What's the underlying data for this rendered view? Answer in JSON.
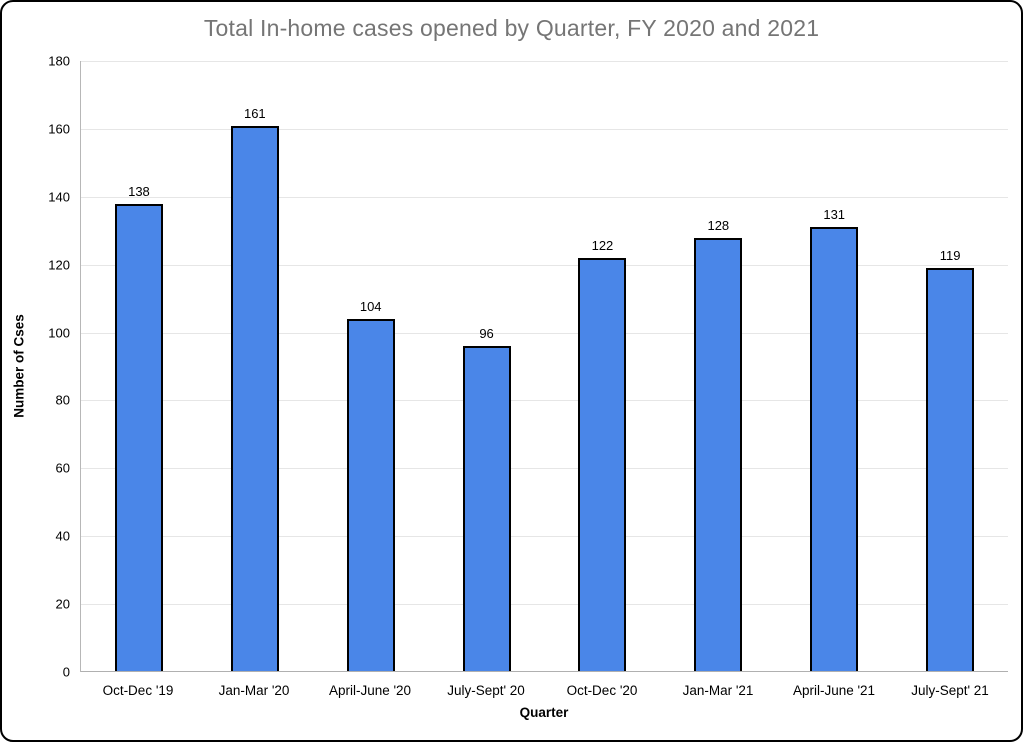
{
  "chart_data": {
    "type": "bar",
    "title": "Total In-home cases opened by Quarter, FY 2020 and 2021",
    "xlabel": "Quarter",
    "ylabel": "Number of Cses",
    "categories": [
      "Oct-Dec '19",
      "Jan-Mar '20",
      "April-June '20",
      "July-Sept' 20",
      "Oct-Dec '20",
      "Jan-Mar '21",
      "April-June '21",
      "July-Sept' 21"
    ],
    "values": [
      138,
      161,
      104,
      96,
      122,
      128,
      131,
      119
    ],
    "ylim": [
      0,
      180
    ],
    "ytick_step": 20,
    "yticks": [
      0,
      20,
      40,
      60,
      80,
      100,
      120,
      140,
      160,
      180
    ],
    "grid": true,
    "legend_position": "none",
    "bar_labels_shown": true,
    "colors": {
      "bar_fill": "#4a86e8",
      "bar_border": "#000000",
      "title_text": "#757575",
      "gridline": "#e6e6e6",
      "axis_line": "#b0b0b0",
      "tick_text": "#000000",
      "frame_border": "#000000"
    }
  }
}
